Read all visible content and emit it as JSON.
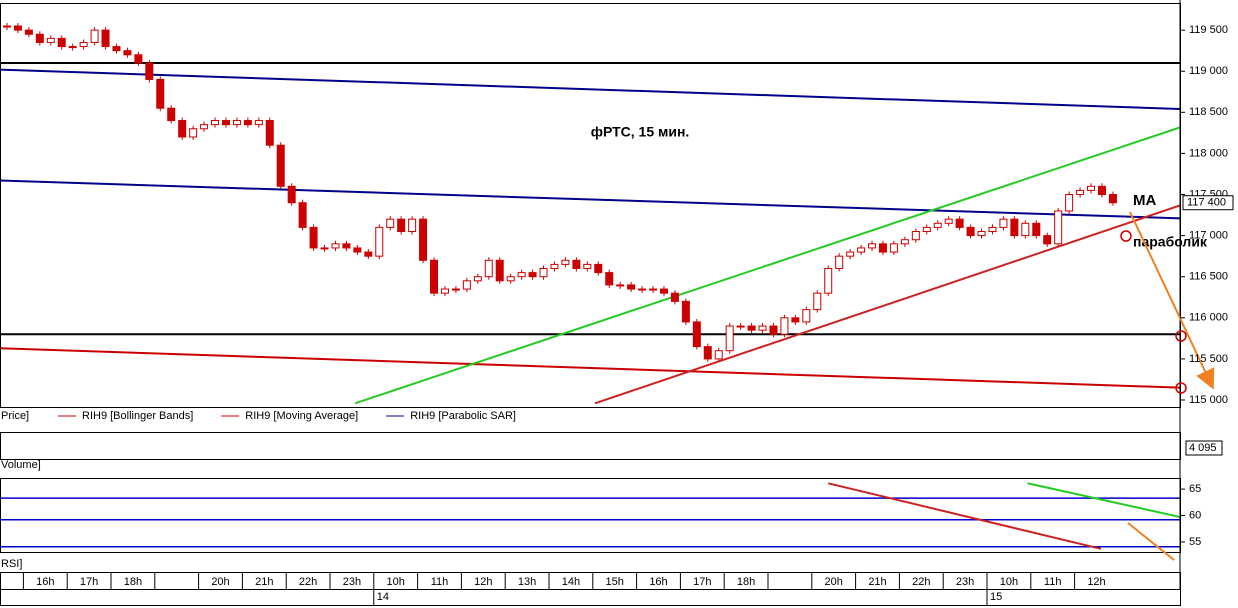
{
  "chart_data": {
    "type": "candlestick",
    "title": "фРТС,  15 мин.",
    "annotations": [
      "MA",
      "параболик"
    ],
    "categories": [
      null,
      "16h",
      "17h",
      "18h",
      null,
      "20h",
      "21h",
      "22h",
      "23h",
      "10h",
      "11h",
      "12h",
      "13h",
      "14h",
      "15h",
      "16h",
      "17h",
      "18h",
      null,
      "20h",
      "21h",
      "22h",
      "23h",
      "10h",
      "11h",
      "12h"
    ],
    "dates": [
      null,
      null,
      null,
      null,
      null,
      null,
      null,
      null,
      null,
      "14",
      null,
      null,
      null,
      null,
      null,
      null,
      null,
      null,
      null,
      null,
      null,
      null,
      null,
      "15",
      null,
      null
    ],
    "close": [
      119550,
      119500,
      119450,
      119350,
      119400,
      119300,
      119300,
      119350,
      119500,
      119300,
      119250,
      119200,
      119100,
      118900,
      118550,
      118400,
      118200,
      118300,
      118350,
      118400,
      118350,
      118400,
      118350,
      118400,
      118100,
      117600,
      117400,
      117100,
      116850,
      116850,
      116900,
      116850,
      116800,
      116750,
      117100,
      117200,
      117050,
      117200,
      116700,
      116300,
      116350,
      116350,
      116450,
      116500,
      116700,
      116450,
      116500,
      116550,
      116500,
      116600,
      116650,
      116700,
      116600,
      116650,
      116550,
      116400,
      116400,
      116350,
      116350,
      116350,
      116300,
      116200,
      115950,
      115650,
      115500,
      115600,
      115900,
      115900,
      115850,
      115900,
      115800,
      116000,
      115950,
      116100,
      116300,
      116600,
      116750,
      116800,
      116850,
      116900,
      116800,
      116900,
      116950,
      117050,
      117100,
      117150,
      117200,
      117100,
      117000,
      117050,
      117100,
      117200,
      117000,
      117150,
      117000,
      116900,
      117300,
      117500,
      117550,
      117600,
      117500,
      117400
    ],
    "up_color": "#ffffff",
    "down_color": "#cc0000",
    "ylim": [
      114915,
      119830
    ],
    "yticks": [
      {
        "value": 115000,
        "label": "115 000"
      },
      {
        "value": 115500,
        "label": "115 500"
      },
      {
        "value": 116000,
        "label": "116 000"
      },
      {
        "value": 116500,
        "label": "116 500"
      },
      {
        "value": 117000,
        "label": "117 000"
      },
      {
        "value": 117500,
        "label": "117 500"
      },
      {
        "value": 118000,
        "label": "118 000"
      },
      {
        "value": 118500,
        "label": "118 500"
      },
      {
        "value": 119000,
        "label": "119 000"
      },
      {
        "value": 119500,
        "label": "119 500"
      }
    ],
    "last_price": {
      "value": 117400,
      "label": "117 400"
    },
    "levels": [
      {
        "value": 119100,
        "color": "#000000"
      },
      {
        "value": 115800,
        "color": "#000000"
      }
    ],
    "price_lines": [
      {
        "color": "#00008b",
        "from": [
          -0.64,
          119020
        ],
        "to": [
          107.2,
          118540
        ]
      },
      {
        "color": "#00008b",
        "from": [
          -0.64,
          117670
        ],
        "to": [
          107.2,
          117210
        ]
      },
      {
        "color": "#cc0000",
        "from": [
          -0.64,
          115630
        ],
        "to": [
          107.2,
          115150
        ]
      },
      {
        "color": "#22cc22",
        "from": [
          31.8,
          114960
        ],
        "to": [
          107.2,
          118320
        ]
      },
      {
        "color": "#cc2222",
        "from": [
          53.7,
          114960
        ],
        "to": [
          107.2,
          117370
        ]
      }
    ],
    "panes": [
      "Price]",
      "Volume]",
      "RSI]"
    ],
    "indicators": [
      {
        "name": "RIH9 [Bollinger Bands]",
        "color": "#cc0000"
      },
      {
        "name": "RIH9 [Moving Average]",
        "color": "#cc0000"
      },
      {
        "name": "RIH9 [Parabolic SAR]",
        "color": "#00008b"
      }
    ],
    "volume_ticks": [
      {
        "value": 4095,
        "label": "4 095"
      }
    ],
    "rsi_ylim": [
      53.1,
      67.1
    ],
    "rsi_yticks": [
      55,
      60,
      65
    ],
    "rsi_levels": [
      63.3,
      59.2,
      54.1
    ],
    "rsi_lines": [
      {
        "color": "#cc2222",
        "from": [
          75.0,
          66.1
        ],
        "to": [
          99.9,
          53.7
        ]
      },
      {
        "color": "#22cc22",
        "from": [
          93.2,
          66.1
        ],
        "to": [
          108.5,
          59.1
        ]
      }
    ]
  }
}
